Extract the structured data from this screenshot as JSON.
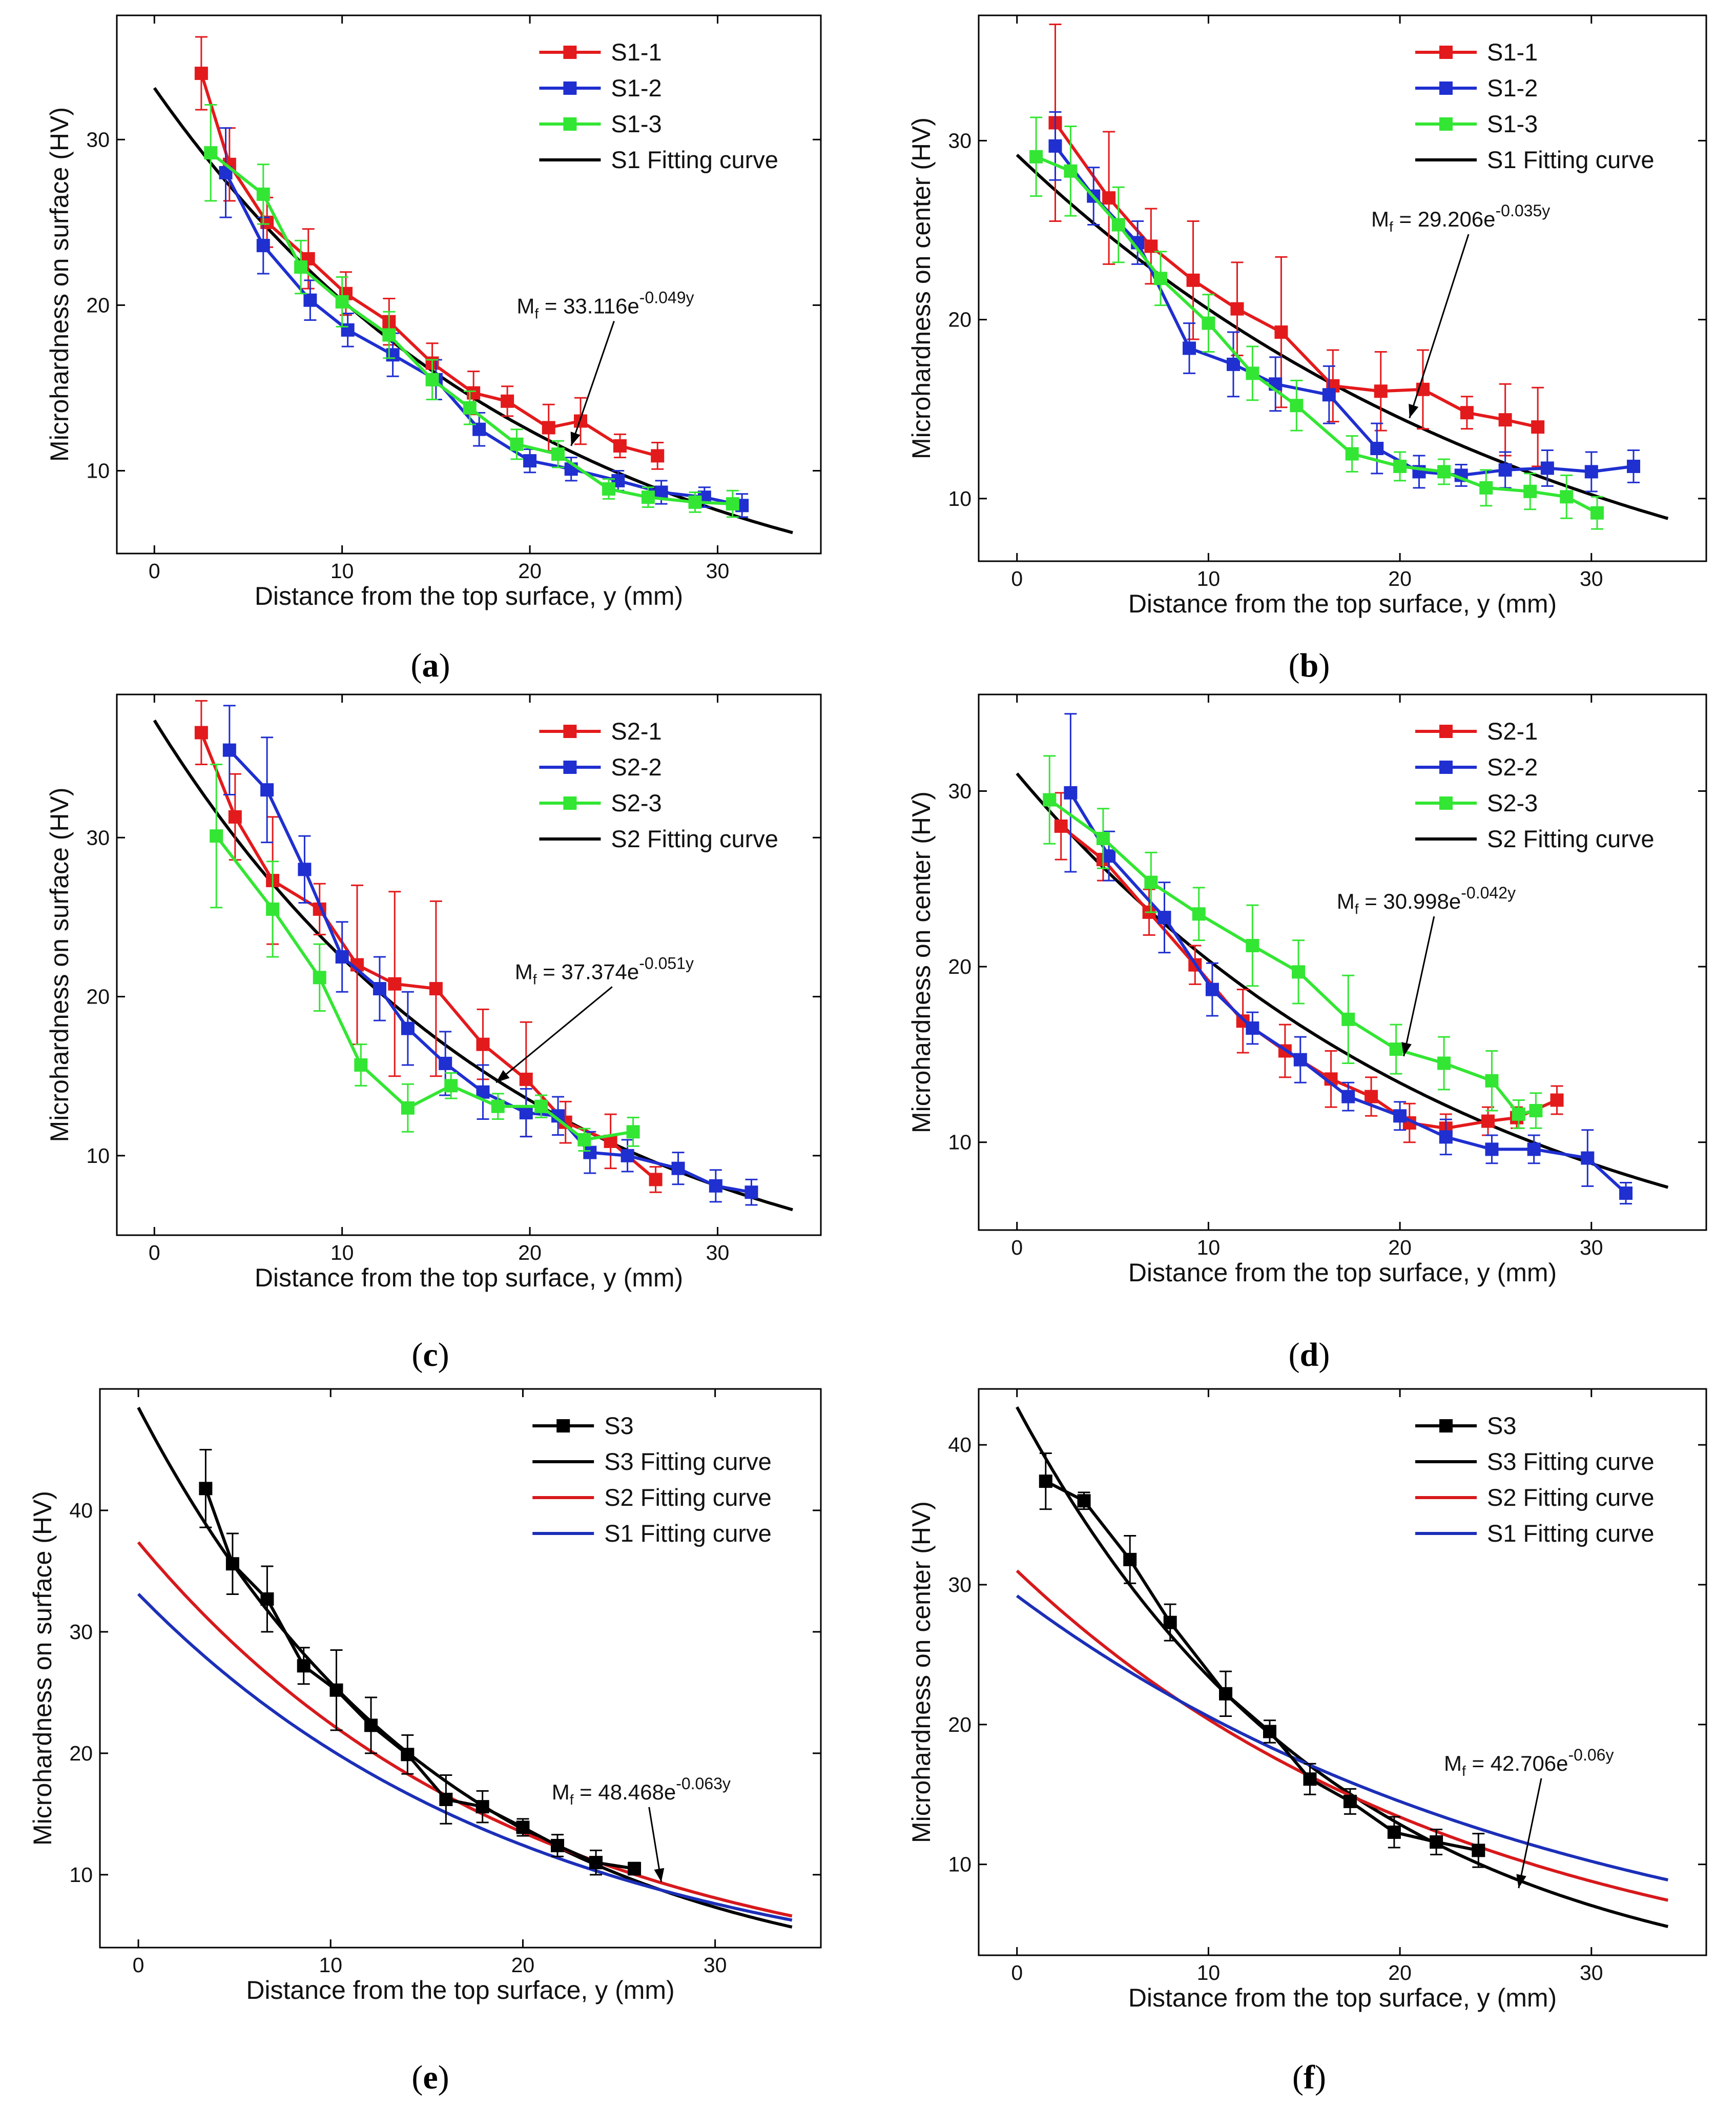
{
  "figure": {
    "panels": [
      {
        "label": "(a)",
        "letter": "a"
      },
      {
        "label": "(b)",
        "letter": "b"
      },
      {
        "label": "(c)",
        "letter": "c"
      },
      {
        "label": "(d)",
        "letter": "d"
      },
      {
        "label": "(e)",
        "letter": "e"
      },
      {
        "label": "(f)",
        "letter": "f"
      }
    ]
  },
  "colors": {
    "red": "#e31a1c",
    "blue": "#1f2fd0",
    "green": "#33e633",
    "black": "#000000",
    "fit_red": "#d7191c",
    "fit_blue": "#1c2fb8"
  },
  "chart_data": [
    {
      "type": "line",
      "id": "a",
      "xlabel": "Distance from the top surface, y (mm)",
      "ylabel": "Microhardness on surface (HV)",
      "xlim": [
        -2,
        35.5
      ],
      "ylim": [
        5,
        37.5
      ],
      "xticks": [
        0,
        10,
        20,
        30
      ],
      "yticks": [
        10,
        20,
        30
      ],
      "legend_position": "top-right",
      "series": [
        {
          "name": "S1-1",
          "color": "red",
          "x": [
            2.5,
            4,
            6,
            8.2,
            10.2,
            12.5,
            14.8,
            17,
            18.8,
            21,
            22.7,
            24.8,
            26.8
          ],
          "y": [
            34,
            28.5,
            25,
            22.8,
            20.7,
            19,
            16.5,
            14.7,
            14.2,
            12.6,
            13,
            11.5,
            10.9
          ],
          "err": [
            2.2,
            2.2,
            1.5,
            1.8,
            1.3,
            1.4,
            1.2,
            1.3,
            0.9,
            1.4,
            1.4,
            0.7,
            0.8
          ]
        },
        {
          "name": "S1-2",
          "color": "blue",
          "x": [
            3.8,
            5.8,
            8.3,
            10.3,
            12.7,
            15,
            17.3,
            20,
            22.2,
            24.7,
            27,
            29.3,
            31.3
          ],
          "y": [
            28,
            23.6,
            20.3,
            18.5,
            17,
            15.5,
            12.5,
            10.6,
            10.1,
            9.4,
            8.7,
            8.4,
            7.9
          ],
          "err": [
            2.7,
            1.7,
            1.2,
            1,
            1.3,
            1.2,
            1,
            0.7,
            0.7,
            0.6,
            0.7,
            0.6,
            0.7
          ]
        },
        {
          "name": "S1-3",
          "color": "green",
          "x": [
            3,
            5.8,
            7.8,
            10,
            12.5,
            14.8,
            16.8,
            19.3,
            21.5,
            24.2,
            26.3,
            28.8,
            30.8
          ],
          "y": [
            29.2,
            26.7,
            22.3,
            20.2,
            18.2,
            15.5,
            13.8,
            11.6,
            11,
            8.9,
            8.4,
            8.1,
            8
          ],
          "err": [
            2.9,
            1.8,
            1.6,
            1.5,
            1.4,
            1.2,
            1,
            0.9,
            0.8,
            0.6,
            0.6,
            0.6,
            0.8
          ]
        }
      ],
      "fit": {
        "name": "S1 Fitting curve",
        "a": 33.116,
        "b": 0.049,
        "color": "black"
      },
      "annotation": {
        "prefix": "M",
        "sub": "f",
        "mid": " = 33.116e",
        "sup": "-0.049y",
        "x": 19.3,
        "y": 19.5,
        "ax": 22.2,
        "ay": 11.5
      }
    },
    {
      "type": "line",
      "id": "b",
      "xlabel": "Distance from the top surface, y (mm)",
      "ylabel": "Microhardness on center (HV)",
      "xlim": [
        -2,
        36
      ],
      "ylim": [
        6.5,
        37
      ],
      "xticks": [
        0,
        10,
        20,
        30
      ],
      "yticks": [
        10,
        20,
        30
      ],
      "legend_position": "top-right",
      "series": [
        {
          "name": "S1-1",
          "color": "red",
          "x": [
            2,
            4.8,
            7,
            9.2,
            11.5,
            13.8,
            16.5,
            19,
            21.2,
            23.5,
            25.5,
            27.2
          ],
          "y": [
            31,
            26.8,
            24.1,
            22.2,
            20.6,
            19.3,
            16.3,
            16,
            16.1,
            14.8,
            14.4,
            14
          ],
          "err": [
            5.5,
            3.7,
            2.1,
            3.3,
            2.6,
            4.2,
            2,
            2.2,
            2.2,
            0.9,
            2,
            2.2
          ]
        },
        {
          "name": "S1-2",
          "color": "blue",
          "x": [
            2,
            4,
            6.3,
            9,
            11.3,
            13.5,
            16.3,
            18.8,
            21,
            23.2,
            25.5,
            27.7,
            30,
            32.2
          ],
          "y": [
            29.7,
            26.9,
            24.3,
            18.4,
            17.5,
            16.4,
            15.8,
            12.8,
            11.5,
            11.3,
            11.6,
            11.7,
            11.5,
            11.8
          ],
          "err": [
            1.9,
            1.6,
            1.2,
            1.4,
            1.8,
            1.5,
            1.6,
            1.4,
            0.9,
            0.6,
            1,
            1,
            1.1,
            0.9
          ]
        },
        {
          "name": "S1-3",
          "color": "green",
          "x": [
            1,
            2.8,
            5.3,
            7.5,
            10,
            12.3,
            14.6,
            17.5,
            20,
            22.3,
            24.5,
            26.8,
            28.7,
            30.3
          ],
          "y": [
            29.1,
            28.3,
            25.3,
            22.3,
            19.8,
            17,
            15.2,
            12.5,
            11.8,
            11.5,
            10.6,
            10.4,
            10.1,
            9.2
          ],
          "err": [
            2.2,
            2.5,
            2.1,
            1.5,
            1.6,
            1.5,
            1.4,
            1,
            0.8,
            0.7,
            1,
            1,
            1.2,
            0.9
          ]
        }
      ],
      "fit": {
        "name": "S1 Fitting curve",
        "a": 29.206,
        "b": 0.035,
        "color": "black"
      },
      "annotation": {
        "prefix": "M",
        "sub": "f",
        "mid": " = 29.206e",
        "sup": "-0.035y",
        "x": 18.5,
        "y": 25.2,
        "ax": 20.5,
        "ay": 14.5
      }
    },
    {
      "type": "line",
      "id": "c",
      "xlabel": "Distance from the top surface, y (mm)",
      "ylabel": "Microhardness on surface (HV)",
      "xlim": [
        -2,
        35.5
      ],
      "ylim": [
        5,
        39
      ],
      "xticks": [
        0,
        10,
        20,
        30
      ],
      "yticks": [
        10,
        20,
        30
      ],
      "legend_position": "top-right",
      "series": [
        {
          "name": "S2-1",
          "color": "red",
          "x": [
            2.5,
            4.3,
            6.3,
            8.8,
            10.8,
            12.8,
            15,
            17.5,
            19.8,
            21.9,
            24.3,
            26.7
          ],
          "y": [
            36.6,
            31.3,
            27.3,
            25.5,
            22,
            20.8,
            20.5,
            17,
            14.8,
            12.1,
            10.9,
            8.5
          ],
          "err": [
            2,
            2.7,
            4,
            1.6,
            5,
            5.8,
            5.5,
            2.2,
            3.6,
            1.3,
            1.7,
            0.8
          ]
        },
        {
          "name": "S2-2",
          "color": "blue",
          "x": [
            4,
            6,
            8,
            10,
            12,
            13.5,
            15.5,
            17.5,
            19.8,
            21.5,
            23.2,
            25.2,
            27.9,
            29.9,
            31.8
          ],
          "y": [
            35.5,
            33,
            28,
            22.5,
            20.5,
            18,
            15.8,
            14,
            12.7,
            12.5,
            10.2,
            10,
            9.2,
            8.1,
            7.7
          ],
          "err": [
            2.8,
            3.3,
            2.1,
            2.2,
            2,
            2.3,
            2,
            1.7,
            1.5,
            1.2,
            1.3,
            1,
            1,
            1,
            0.8
          ]
        },
        {
          "name": "S2-3",
          "color": "green",
          "x": [
            3.3,
            6.3,
            8.8,
            11,
            13.5,
            15.8,
            18.3,
            20.6,
            22.9,
            25.5
          ],
          "y": [
            30.1,
            25.5,
            21.2,
            15.7,
            13,
            14.4,
            13.1,
            13.1,
            11,
            11.5
          ],
          "err": [
            4.5,
            3,
            2.1,
            1.3,
            1.5,
            0.8,
            0.8,
            0.7,
            0.7,
            0.9
          ]
        }
      ],
      "fit": {
        "name": "S2 Fitting curve",
        "a": 37.374,
        "b": 0.051,
        "color": "black"
      },
      "annotation": {
        "prefix": "M",
        "sub": "f",
        "mid": " = 37.374e",
        "sup": "-0.051y",
        "x": 19.2,
        "y": 21.1,
        "ax": 18.2,
        "ay": 14.6
      }
    },
    {
      "type": "line",
      "id": "d",
      "xlabel": "Distance from the top surface, y (mm)",
      "ylabel": "Microhardness on center (HV)",
      "xlim": [
        -2,
        36
      ],
      "ylim": [
        5,
        35.5
      ],
      "xticks": [
        0,
        10,
        20,
        30
      ],
      "yticks": [
        10,
        20,
        30
      ],
      "legend_position": "top-right",
      "series": [
        {
          "name": "S2-1",
          "color": "red",
          "x": [
            2.3,
            4.5,
            6.9,
            9.3,
            11.8,
            14,
            16.4,
            18.5,
            20.5,
            22.4,
            24.6,
            26.1,
            28.2
          ],
          "y": [
            28,
            26.1,
            23.1,
            20.1,
            16.9,
            15.2,
            13.6,
            12.6,
            11.1,
            10.8,
            11.2,
            11.4,
            12.4
          ],
          "err": [
            1.9,
            1.2,
            1.3,
            1.1,
            1.8,
            1.5,
            1.6,
            1.1,
            1.1,
            0.8,
            0.8,
            0.6,
            0.8
          ]
        },
        {
          "name": "S2-2",
          "color": "blue",
          "x": [
            2.8,
            4.8,
            7.7,
            10.2,
            12.3,
            14.8,
            17.3,
            20,
            22.4,
            24.8,
            27,
            29.8,
            31.8
          ],
          "y": [
            29.9,
            26.3,
            22.8,
            18.7,
            16.5,
            14.7,
            12.6,
            11.5,
            10.3,
            9.6,
            9.6,
            9.1,
            7.1
          ],
          "err": [
            4.5,
            1.4,
            2,
            1.5,
            0.9,
            1.3,
            0.8,
            0.8,
            1,
            0.8,
            0.8,
            1.6,
            0.6
          ]
        },
        {
          "name": "S2-3",
          "color": "green",
          "x": [
            1.7,
            4.5,
            7,
            9.5,
            12.3,
            14.7,
            17.3,
            19.8,
            22.3,
            24.8,
            26.2,
            27.1
          ],
          "y": [
            29.5,
            27.3,
            24.8,
            23,
            21.2,
            19.7,
            17,
            15.3,
            14.5,
            13.5,
            11.6,
            11.8
          ],
          "err": [
            2.5,
            1.7,
            1.7,
            1.5,
            2.3,
            1.8,
            2.5,
            1.4,
            1.5,
            1.7,
            0.8,
            1
          ]
        }
      ],
      "fit": {
        "name": "S2 Fitting curve",
        "a": 30.998,
        "b": 0.042,
        "color": "black"
      },
      "annotation": {
        "prefix": "M",
        "sub": "f",
        "mid": " = 30.998e",
        "sup": "-0.042y",
        "x": 16.7,
        "y": 23.3,
        "ax": 20.2,
        "ay": 14.9
      }
    },
    {
      "type": "line",
      "id": "e",
      "xlabel": "Distance from the top surface, y (mm)",
      "ylabel": "Microhardness on surface (HV)",
      "xlim": [
        -2,
        35.5
      ],
      "ylim": [
        4,
        50
      ],
      "xticks": [
        0,
        10,
        20,
        30
      ],
      "yticks": [
        10,
        20,
        30,
        40
      ],
      "legend_position": "top-right",
      "series": [
        {
          "name": "S3",
          "color": "black",
          "x": [
            3.5,
            4.9,
            6.7,
            8.6,
            10.3,
            12.1,
            14,
            16,
            17.9,
            20,
            21.8,
            23.8,
            25.8
          ],
          "y": [
            41.8,
            35.6,
            32.7,
            27.2,
            25.2,
            22.3,
            19.9,
            16.2,
            15.6,
            13.9,
            12.4,
            11,
            10.5
          ],
          "err": [
            3.2,
            2.5,
            2.7,
            1.5,
            3.3,
            2.3,
            1.6,
            2,
            1.3,
            0.7,
            0.9,
            1,
            0.5
          ]
        }
      ],
      "fits": [
        {
          "name": "S3 Fitting curve",
          "a": 48.468,
          "b": 0.063,
          "color": "black"
        },
        {
          "name": "S2 Fitting curve",
          "a": 37.374,
          "b": 0.051,
          "color": "fit_red"
        },
        {
          "name": "S1 Fitting curve",
          "a": 33.116,
          "b": 0.049,
          "color": "fit_blue"
        }
      ],
      "annotation": {
        "prefix": "M",
        "sub": "f",
        "mid": " = 48.468e",
        "sup": "-0.063y",
        "x": 21.5,
        "y": 16.2,
        "ax": 27.2,
        "ay": 9.4
      }
    },
    {
      "type": "line",
      "id": "f",
      "xlabel": "Distance from the top surface, y (mm)",
      "ylabel": "Microhardness on center (HV)",
      "xlim": [
        -2,
        36
      ],
      "ylim": [
        3.5,
        44
      ],
      "xticks": [
        0,
        10,
        20,
        30
      ],
      "yticks": [
        10,
        20,
        30,
        40
      ],
      "legend_position": "top-right",
      "series": [
        {
          "name": "S3",
          "color": "black",
          "x": [
            1.5,
            3.5,
            5.9,
            8,
            10.9,
            13.2,
            15.3,
            17.4,
            19.7,
            21.9,
            24.1
          ],
          "y": [
            37.4,
            36,
            31.8,
            27.3,
            22.2,
            19.5,
            16.1,
            14.5,
            12.3,
            11.6,
            11
          ],
          "err": [
            2,
            0.6,
            1.7,
            1.3,
            1.6,
            0.8,
            1.1,
            0.9,
            1.1,
            0.9,
            1.2
          ]
        }
      ],
      "fits": [
        {
          "name": "S3 Fitting curve",
          "a": 42.706,
          "b": 0.06,
          "color": "black"
        },
        {
          "name": "S2 Fitting curve",
          "a": 30.998,
          "b": 0.042,
          "color": "fit_red"
        },
        {
          "name": "S1 Fitting curve",
          "a": 29.206,
          "b": 0.035,
          "color": "fit_blue"
        }
      ],
      "annotation": {
        "prefix": "M",
        "sub": "f",
        "mid": " = 42.706e",
        "sup": "-0.06y",
        "x": 22.3,
        "y": 16.7,
        "ax": 26.2,
        "ay": 8.3
      }
    }
  ]
}
